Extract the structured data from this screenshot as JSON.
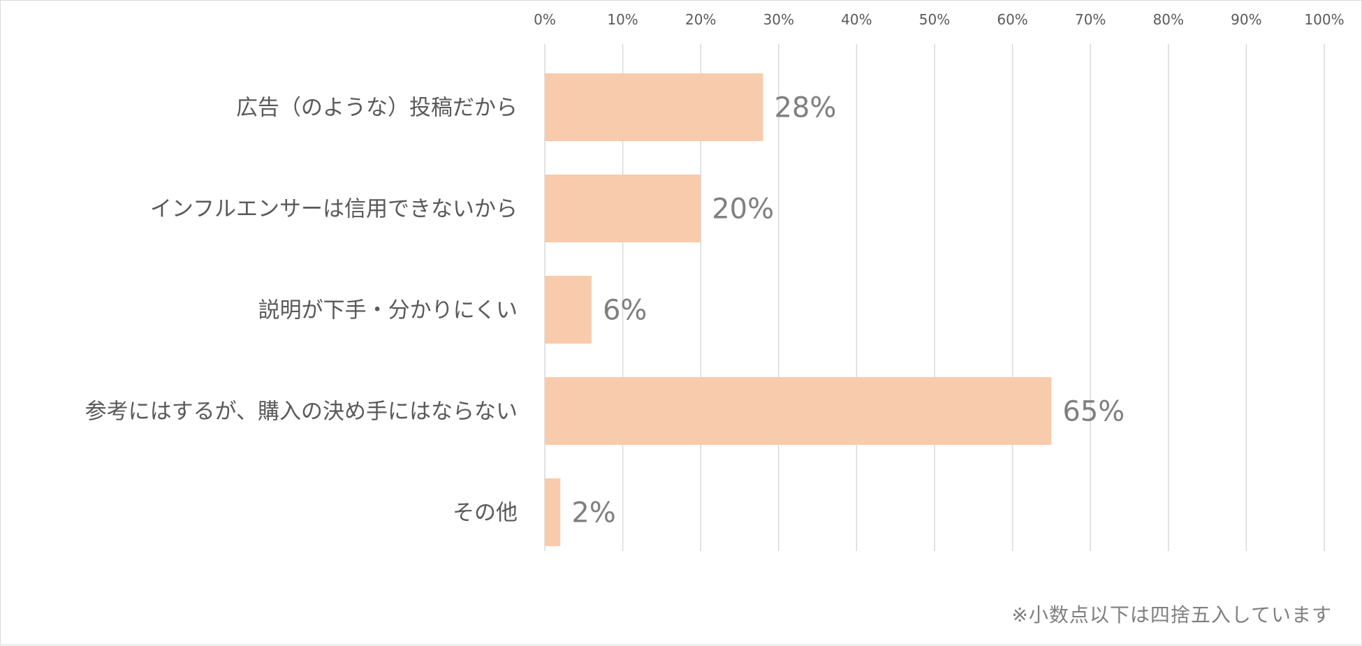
{
  "chart_data": {
    "type": "bar",
    "orientation": "horizontal",
    "categories": [
      "広告（のような）投稿だから",
      "インフルエンサーは信用できないから",
      "説明が下手・分かりにくい",
      "参考にはするが、購入の決め手にはならない",
      "その他"
    ],
    "values": [
      28,
      20,
      6,
      65,
      2
    ],
    "data_labels": [
      "28%",
      "20%",
      "6%",
      "65%",
      "2%"
    ],
    "xlim": [
      0,
      100
    ],
    "x_ticks": [
      "0%",
      "10%",
      "20%",
      "30%",
      "40%",
      "50%",
      "60%",
      "70%",
      "80%",
      "90%",
      "100%"
    ],
    "x_axis_position": "top",
    "grid": true,
    "legend": "none",
    "colors": {
      "bar": "#f8cbad",
      "grid": "#d9d9d9",
      "text": "#595959",
      "data_label": "#7f7f7f"
    }
  },
  "footnote": "※小数点以下は四捨五入しています"
}
